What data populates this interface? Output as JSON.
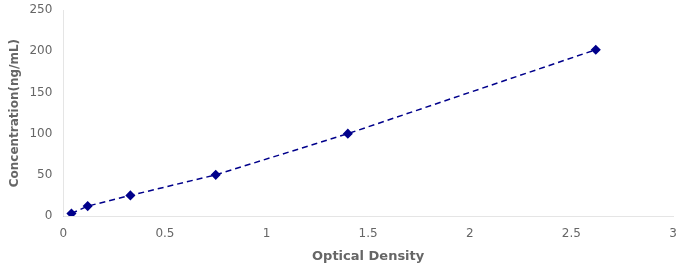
{
  "chart_data": {
    "type": "line",
    "x": [
      0.04,
      0.12,
      0.33,
      0.75,
      1.4,
      2.62
    ],
    "values": [
      3,
      12,
      25,
      50,
      100,
      202
    ],
    "color": "#00008B",
    "marker": "diamond",
    "line_style": "dashed",
    "xlabel": "Optical Density",
    "ylabel": "Concentration(ng/mL)",
    "xlim": [
      0,
      3
    ],
    "ylim": [
      0,
      250
    ],
    "xticks": [
      0,
      0.5,
      1,
      1.5,
      2,
      2.5,
      3
    ],
    "yticks": [
      0,
      50,
      100,
      150,
      200,
      250
    ],
    "grid": false
  }
}
